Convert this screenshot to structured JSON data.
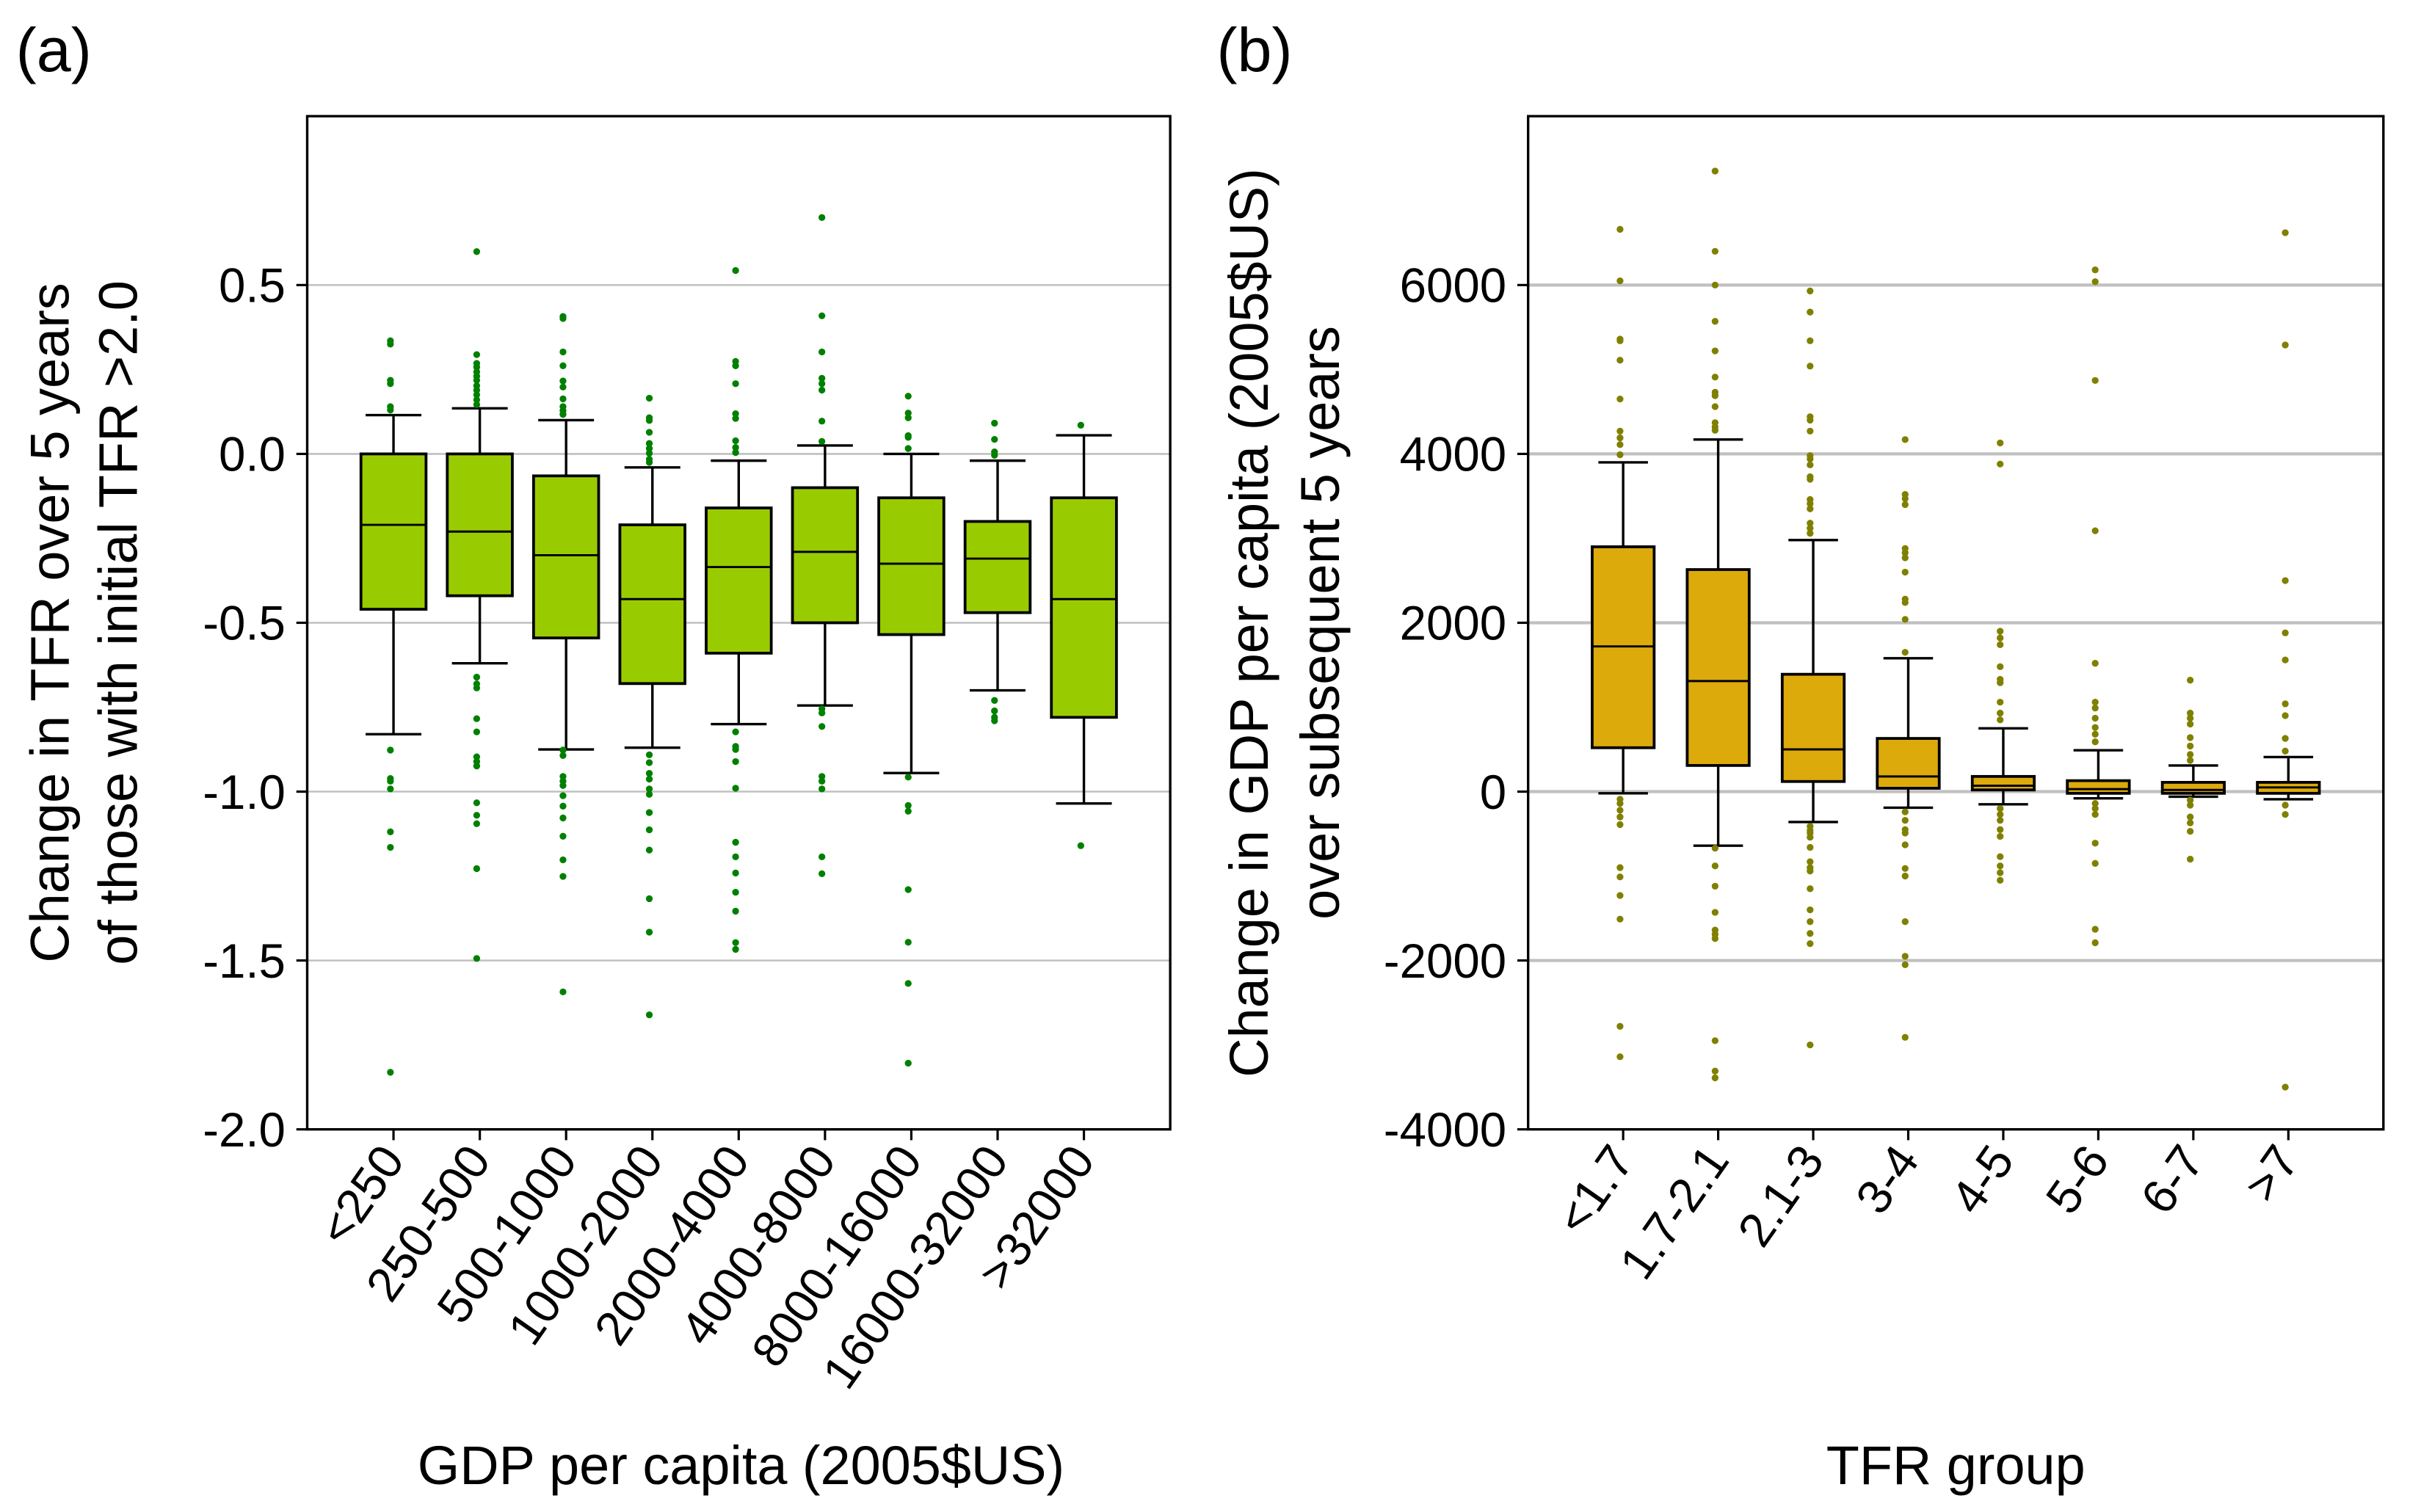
{
  "chart_data": [
    {
      "type": "box",
      "panel_label": "(a)",
      "title": "",
      "xlabel": "GDP per capita (2005$US)",
      "ylabel": [
        "Change in TFR over 5 years",
        "of those with initial TFR >2.0"
      ],
      "ylim": [
        -2.0,
        1.0
      ],
      "yticks": [
        0.5,
        0.0,
        -0.5,
        -1.0,
        -1.5,
        -2.0
      ],
      "ytick_labels": [
        "0.5",
        "0.0",
        "-0.5",
        "-1.0",
        "-1.5",
        "-2.0"
      ],
      "grid": true,
      "colors": {
        "box": "#99CC00",
        "outlier": "#008000"
      },
      "categories": [
        "<250",
        "250-500",
        "500-1000",
        "1000-2000",
        "2000-4000",
        "4000-8000",
        "8000-16000",
        "16000-32000",
        ">32000"
      ],
      "boxes": [
        {
          "whisker_low": -0.83,
          "q1": -0.46,
          "median": -0.21,
          "q3": 0.0,
          "whisker_high": 0.115,
          "outliers": [
            0.335,
            0.325,
            0.218,
            0.208,
            0.14,
            0.13,
            -0.877,
            -0.961,
            -0.969,
            -0.992,
            -1.119,
            -1.165,
            -1.831
          ]
        },
        {
          "whisker_low": -0.62,
          "q1": -0.42,
          "median": -0.23,
          "q3": 0.0,
          "whisker_high": 0.135,
          "outliers": [
            0.599,
            0.294,
            0.268,
            0.257,
            0.243,
            0.23,
            0.218,
            0.202,
            0.189,
            0.175,
            0.16,
            0.146,
            -0.661,
            -0.681,
            -0.693,
            -0.784,
            -0.823,
            -0.897,
            -0.911,
            -0.924,
            -1.033,
            -1.07,
            -1.095,
            -1.228,
            -1.494
          ]
        },
        {
          "whisker_low": -0.875,
          "q1": -0.545,
          "median": -0.3,
          "q3": -0.065,
          "whisker_high": 0.1,
          "outliers": [
            0.407,
            0.401,
            0.302,
            0.261,
            0.216,
            0.198,
            0.163,
            0.14,
            0.128,
            0.117,
            -0.877,
            -0.893,
            -0.955,
            -0.969,
            -0.982,
            -1.012,
            -1.043,
            -1.078,
            -1.132,
            -1.202,
            -1.251,
            -1.593
          ]
        },
        {
          "whisker_low": -0.87,
          "q1": -0.68,
          "median": -0.43,
          "q3": -0.21,
          "whisker_high": -0.04,
          "outliers": [
            0.165,
            0.107,
            0.099,
            0.064,
            0.031,
            0.016,
            0.002,
            -0.016,
            -0.025,
            -0.891,
            -0.914,
            -0.946,
            -0.963,
            -0.992,
            -1.008,
            -1.062,
            -1.113,
            -1.173,
            -1.317,
            -1.416,
            -1.661
          ]
        },
        {
          "whisker_low": -0.8,
          "q1": -0.59,
          "median": -0.335,
          "q3": -0.16,
          "whisker_high": -0.02,
          "outliers": [
            0.543,
            0.274,
            0.261,
            0.208,
            0.119,
            0.105,
            0.039,
            0.019,
            0.004,
            -0.823,
            -0.866,
            -0.875,
            -0.911,
            -0.99,
            -1.15,
            -1.193,
            -1.241,
            -1.298,
            -1.354,
            -1.447,
            -1.467
          ]
        },
        {
          "whisker_low": -0.745,
          "q1": -0.5,
          "median": -0.29,
          "q3": -0.1,
          "whisker_high": 0.025,
          "outliers": [
            0.7,
            0.409,
            0.302,
            0.224,
            0.208,
            0.189,
            0.097,
            0.037,
            -0.755,
            -0.767,
            -0.807,
            -0.955,
            -0.969,
            -0.992,
            -1.193,
            -1.243
          ]
        },
        {
          "whisker_low": -0.945,
          "q1": -0.535,
          "median": -0.325,
          "q3": -0.13,
          "whisker_high": 0.0,
          "outliers": [
            0.171,
            0.121,
            0.107,
            0.054,
            0.049,
            0.016,
            -0.957,
            -1.041,
            -1.058,
            -1.29,
            -1.446,
            -1.568,
            -1.804
          ]
        },
        {
          "whisker_low": -0.7,
          "q1": -0.47,
          "median": -0.31,
          "q3": -0.2,
          "whisker_high": -0.02,
          "outliers": [
            0.091,
            0.043,
            0.006,
            -0.004,
            -0.73,
            -0.761,
            -0.78,
            -0.79
          ]
        },
        {
          "whisker_low": -1.035,
          "q1": -0.78,
          "median": -0.43,
          "q3": -0.13,
          "whisker_high": 0.055,
          "outliers": [
            0.085,
            -1.16
          ]
        }
      ]
    },
    {
      "type": "box",
      "panel_label": "(b)",
      "title": "",
      "xlabel": "TFR group",
      "ylabel": [
        "Change in GDP per capita (2005$US)",
        "over subsequent 5 years"
      ],
      "ylim": [
        -4000,
        8000
      ],
      "yticks": [
        6000,
        4000,
        2000,
        0,
        -2000,
        -4000
      ],
      "ytick_labels": [
        "6000",
        "4000",
        "2000",
        "0",
        "-2000",
        "-4000"
      ],
      "grid": true,
      "colors": {
        "box": "#DDAA0C",
        "outlier": "#808000"
      },
      "categories": [
        "<1.7",
        "1.7-2.1",
        "2.1-3",
        "3-4",
        "4-5",
        "5-6",
        "6-7",
        ">7"
      ],
      "boxes": [
        {
          "whisker_low": -20,
          "q1": 520,
          "median": 1720,
          "q3": 2900,
          "whisker_high": 3900,
          "outliers": [
            6660,
            6050,
            5360,
            5340,
            5110,
            4650,
            4270,
            4190,
            4110,
            3990,
            -90,
            -140,
            -220,
            -300,
            -390,
            -900,
            -1010,
            -1230,
            -1510,
            -2780,
            -3140
          ]
        },
        {
          "whisker_low": -640,
          "q1": 310,
          "median": 1310,
          "q3": 2630,
          "whisker_high": 4170,
          "outliers": [
            7350,
            6400,
            6000,
            5570,
            5220,
            4910,
            4730,
            4690,
            4560,
            4370,
            4320,
            4280,
            -670,
            -880,
            -1120,
            -1430,
            -1640,
            -1690,
            -1740,
            -2950,
            -3310,
            -3390
          ]
        },
        {
          "whisker_low": -360,
          "q1": 120,
          "median": 500,
          "q3": 1390,
          "whisker_high": 2980,
          "outliers": [
            5930,
            5680,
            5340,
            5040,
            4440,
            4400,
            4270,
            3980,
            3940,
            3870,
            3730,
            3700,
            3460,
            3410,
            3350,
            3180,
            3120,
            3060,
            -410,
            -460,
            -490,
            -540,
            -660,
            -830,
            -900,
            -940,
            -1150,
            -1400,
            -1540,
            -1680,
            -1800,
            -3000
          ]
        },
        {
          "whisker_low": -190,
          "q1": 40,
          "median": 180,
          "q3": 630,
          "whisker_high": 1580,
          "outliers": [
            4170,
            3520,
            3470,
            3400,
            2880,
            2830,
            2770,
            2600,
            2280,
            2240,
            2040,
            1650,
            -240,
            -340,
            -450,
            -490,
            -630,
            -910,
            -1000,
            -1540,
            -1950,
            -2050,
            -2910
          ]
        },
        {
          "whisker_low": -150,
          "q1": 20,
          "median": 70,
          "q3": 180,
          "whisker_high": 750,
          "outliers": [
            4130,
            3880,
            1900,
            1820,
            1740,
            1480,
            1330,
            1290,
            1060,
            930,
            850,
            -200,
            -270,
            -340,
            -450,
            -530,
            -770,
            -880,
            -960,
            -1050
          ]
        },
        {
          "whisker_low": -80,
          "q1": -20,
          "median": 30,
          "q3": 130,
          "whisker_high": 490,
          "outliers": [
            6180,
            6040,
            4870,
            3090,
            1520,
            1060,
            990,
            870,
            760,
            680,
            590,
            -140,
            -200,
            -270,
            -610,
            -850,
            -1630,
            -1790
          ]
        },
        {
          "whisker_low": -60,
          "q1": -20,
          "median": 20,
          "q3": 110,
          "whisker_high": 310,
          "outliers": [
            1320,
            930,
            870,
            800,
            640,
            540,
            440,
            370,
            -100,
            -160,
            -300,
            -370,
            -470,
            -800
          ]
        },
        {
          "whisker_low": -90,
          "q1": -20,
          "median": 50,
          "q3": 110,
          "whisker_high": 410,
          "outliers": [
            6620,
            5290,
            2500,
            1880,
            1560,
            1040,
            900,
            630,
            480,
            -160,
            -270,
            -3500
          ]
        }
      ]
    }
  ]
}
